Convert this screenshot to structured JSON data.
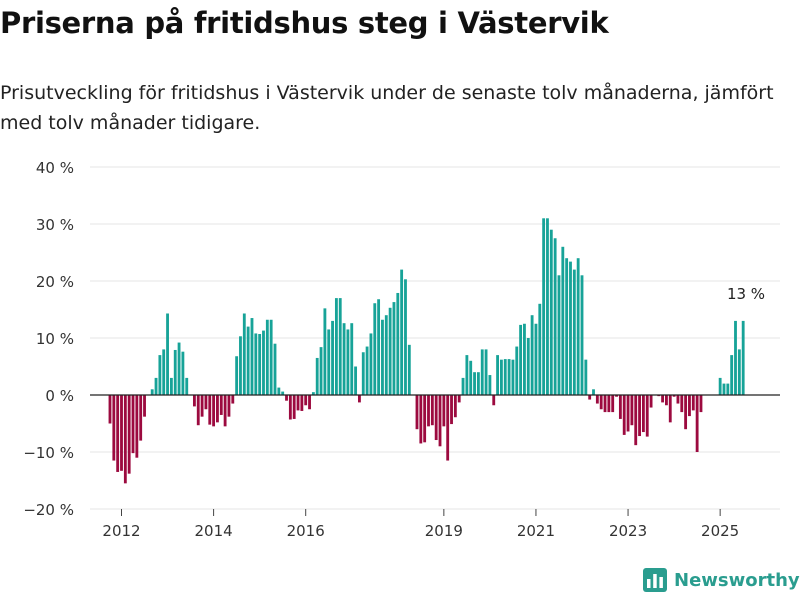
{
  "title": "Priserna på fritidshus steg i Västervik",
  "subtitle": "Prisutveckling för fritidshus i Västervik under de senaste tolv månaderna, jämfört med tolv månader tidigare.",
  "brand": "Newsworthy",
  "colors": {
    "positive": "#17a398",
    "negative": "#9c0a3f",
    "grid": "#e4e4e4",
    "baseline": "#222222",
    "brand": "#2a9d8f"
  },
  "chart_data": {
    "type": "bar",
    "unit": "%",
    "ylim": [
      -20,
      40
    ],
    "yticks": [
      -20,
      -10,
      0,
      10,
      20,
      30,
      40
    ],
    "ytick_labels": [
      "−20 %",
      "−10 %",
      "0 %",
      "10 %",
      "20 %",
      "30 %",
      "40 %"
    ],
    "xticks": [
      2012,
      2014,
      2016,
      2019,
      2021,
      2023,
      2025
    ],
    "start": [
      2011,
      10
    ],
    "annotation": {
      "label": "13 %",
      "year": 2025,
      "month": 8,
      "value": 13
    },
    "values": [
      -5,
      -11.5,
      -13.5,
      -13.3,
      -15.5,
      -13.8,
      -10.2,
      -11,
      -8,
      -3.8,
      0,
      1,
      3,
      7,
      8,
      14.3,
      3,
      7.9,
      9.2,
      7.6,
      3,
      0,
      -2,
      -5.3,
      -3.8,
      -2.5,
      -5.2,
      -5.5,
      -4.8,
      -3.5,
      -5.5,
      -3.8,
      -1.5,
      6.8,
      10.3,
      14.3,
      12,
      13.5,
      10.8,
      10.7,
      11.3,
      13.2,
      13.2,
      9,
      1.3,
      0.6,
      -1,
      -4.3,
      -4.2,
      -2.7,
      -2.8,
      -1.8,
      -2.5,
      0.5,
      6.5,
      8.4,
      15.2,
      11.5,
      13,
      17,
      17,
      12.6,
      11.5,
      12.6,
      5,
      -1.3,
      7.5,
      8.5,
      10.8,
      16.1,
      16.8,
      13.2,
      14,
      15.3,
      16.3,
      17.9,
      22,
      20.3,
      8.8,
      0,
      -6,
      -8.5,
      -8.3,
      -5.5,
      -5.3,
      -7.9,
      -9,
      -5.5,
      -11.5,
      -5.1,
      -3.9,
      -1.3,
      3,
      7,
      6,
      4,
      4,
      8,
      8,
      3.5,
      -1.8,
      7,
      6.2,
      6.3,
      6.3,
      6.2,
      8.5,
      12.3,
      12.5,
      10,
      14,
      12.5,
      16,
      31,
      31,
      29,
      27.5,
      21,
      26,
      24,
      23.4,
      22,
      24,
      21,
      6.2,
      -0.8,
      1,
      -1.5,
      -2.5,
      -3,
      -3,
      -3,
      -0.3,
      -4.2,
      -7,
      -6.4,
      -5.3,
      -8.8,
      -7.2,
      -6.5,
      -7.3,
      -2.2,
      0,
      -0.2,
      -1.3,
      -1.8,
      -4.8,
      -0.3,
      -1.5,
      -3,
      -6,
      -3.7,
      -2.7,
      -10,
      -3,
      0,
      0,
      0,
      0,
      3,
      2,
      2,
      7,
      13,
      8,
      13
    ]
  }
}
